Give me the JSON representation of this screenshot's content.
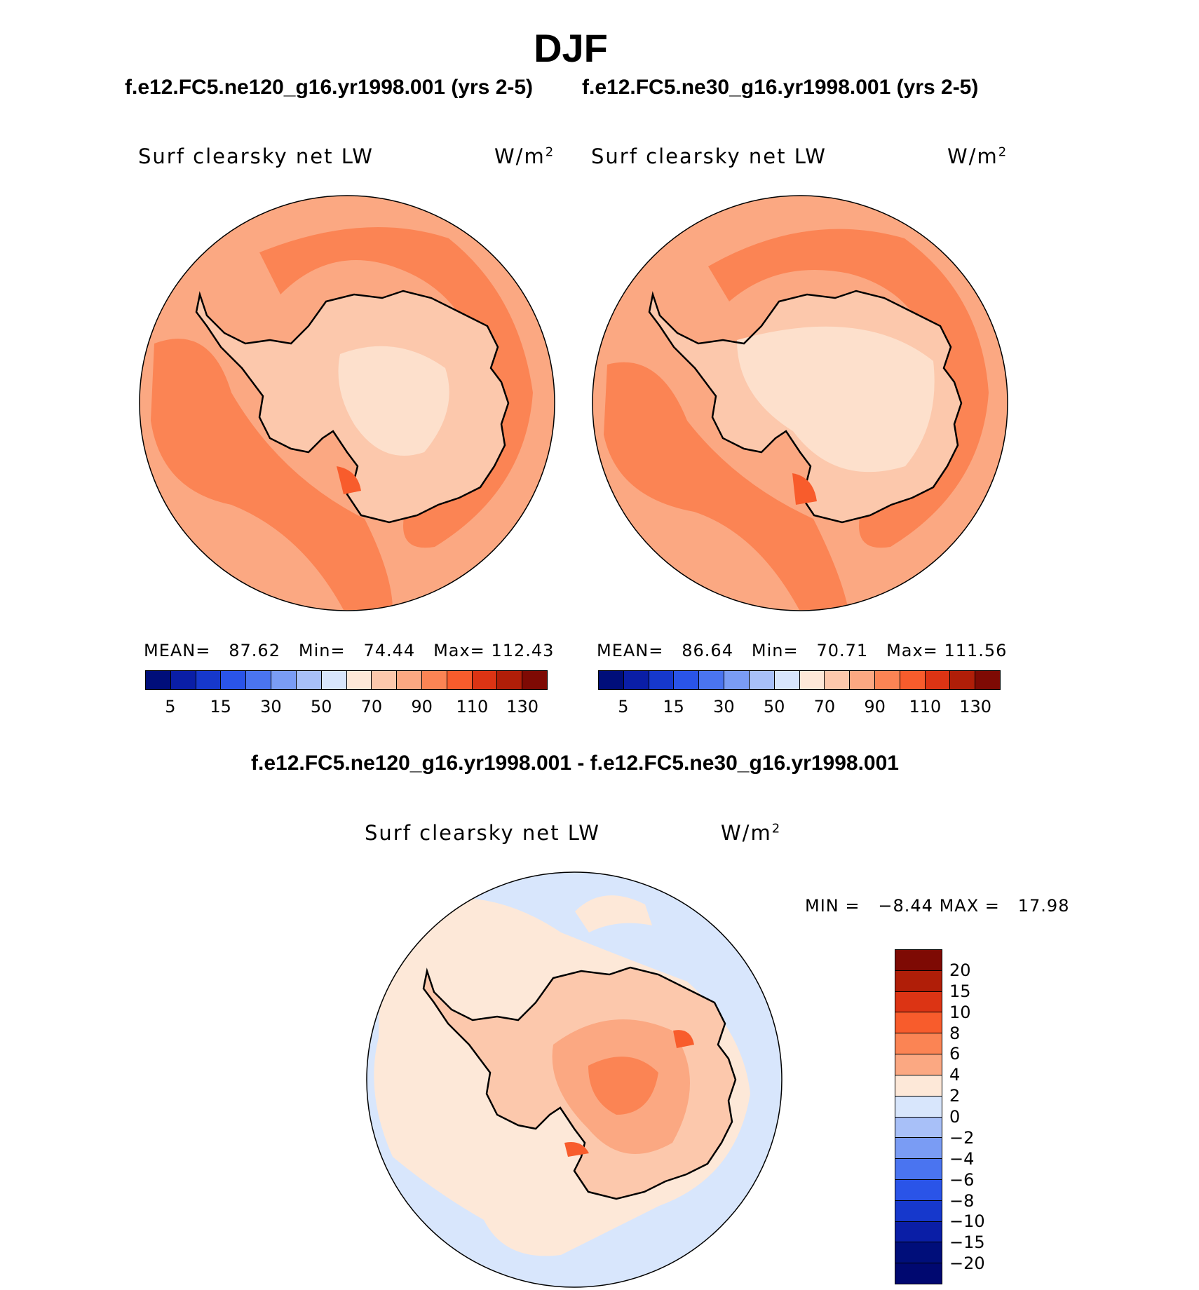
{
  "season": "DJF",
  "case1_title": "f.e12.FC5.ne120_g16.yr1998.001 (yrs 2-5)",
  "case2_title": "f.e12.FC5.ne30_g16.yr1998.001 (yrs 2-5)",
  "diff_title": "f.e12.FC5.ne120_g16.yr1998.001 - f.e12.FC5.ne30_g16.yr1998.001",
  "variable": "Surf clearsky net LW",
  "units_base": "W/m",
  "units_exp": "2",
  "panel1": {
    "mean_label": "MEAN=",
    "mean": "87.62",
    "min_label": "Min=",
    "min": "74.44",
    "max_label": "Max=",
    "max": "112.43"
  },
  "panel2": {
    "mean_label": "MEAN=",
    "mean": "86.64",
    "min_label": "Min=",
    "min": "70.71",
    "max_label": "Max=",
    "max": "111.56"
  },
  "diff_stats": {
    "min_label": "MIN =",
    "min": "−8.44",
    "max_label": "MAX =",
    "max": "17.98"
  },
  "field_colorbar": {
    "colors": [
      "#000e7a",
      "#0a1ea6",
      "#1638cc",
      "#2a54e8",
      "#4a74f0",
      "#7a9cf4",
      "#a8c0f8",
      "#d8e6fc",
      "#fde8d8",
      "#fcc8ac",
      "#fba882",
      "#fb8454",
      "#f85c2c",
      "#dc3414",
      "#b01e08",
      "#7e0a04"
    ],
    "tick_labels": [
      "5",
      "15",
      "30",
      "50",
      "70",
      "90",
      "110",
      "130"
    ]
  },
  "diff_colorbar": {
    "colors": [
      "#7e0a04",
      "#b01e08",
      "#dc3414",
      "#f85c2c",
      "#fb8454",
      "#fba882",
      "#fde8d8",
      "#d8e6fc",
      "#a8c0f8",
      "#7a9cf4",
      "#4a74f0",
      "#2a54e8",
      "#1638cc",
      "#0a1ea6",
      "#000e7a",
      "#000870"
    ],
    "tick_labels": [
      "20",
      "15",
      "10",
      "8",
      "6",
      "4",
      "2",
      "0",
      "−2",
      "−4",
      "−6",
      "−8",
      "−10",
      "−15",
      "−20"
    ]
  }
}
